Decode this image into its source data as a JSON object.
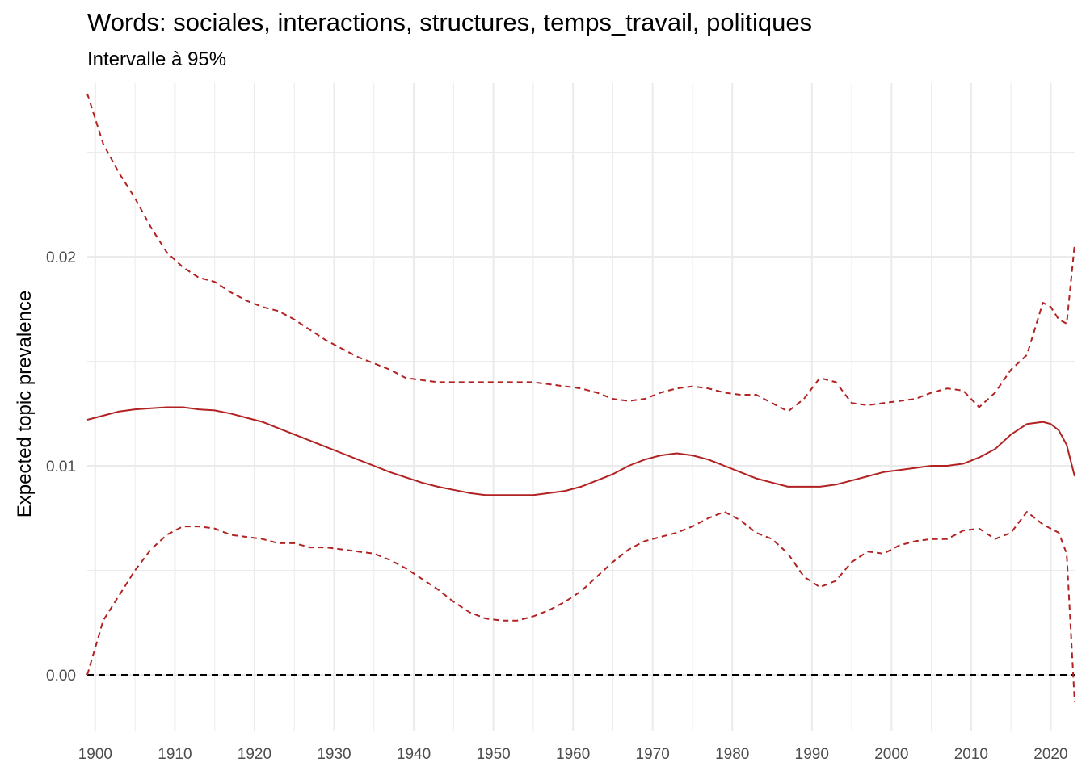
{
  "chart_data": {
    "type": "line",
    "title": "Words: sociales, interactions, structures, temps_travail, politiques",
    "subtitle": "Intervalle à 95%",
    "xlabel": "",
    "ylabel": "Expected topic prevalence",
    "xlim": [
      1899,
      2023
    ],
    "ylim": [
      -0.0027,
      0.0283
    ],
    "x_ticks": [
      1900,
      1910,
      1920,
      1930,
      1940,
      1950,
      1960,
      1970,
      1980,
      1990,
      2000,
      2010,
      2020
    ],
    "x_tick_labels": [
      "1900",
      "1910",
      "1920",
      "1930",
      "1940",
      "1950",
      "1960",
      "1970",
      "1980",
      "1990",
      "2000",
      "2010",
      "2020"
    ],
    "y_ticks": [
      0.0,
      0.01,
      0.02
    ],
    "y_tick_labels": [
      "0.00",
      "0.01",
      "0.02"
    ],
    "y_minor_ticks": [
      0.005,
      0.015,
      0.025
    ],
    "grid": true,
    "reference_line": {
      "y": 0.0,
      "style": "dashed",
      "color": "#000000"
    },
    "colors": {
      "series": "#B22222",
      "grid": "#EBEBEB"
    },
    "x": [
      1899,
      1901,
      1903,
      1905,
      1907,
      1909,
      1911,
      1913,
      1915,
      1917,
      1919,
      1921,
      1923,
      1925,
      1927,
      1929,
      1931,
      1933,
      1935,
      1937,
      1939,
      1941,
      1943,
      1945,
      1947,
      1949,
      1951,
      1953,
      1955,
      1957,
      1959,
      1961,
      1963,
      1965,
      1967,
      1969,
      1971,
      1973,
      1975,
      1977,
      1979,
      1981,
      1983,
      1985,
      1987,
      1989,
      1991,
      1993,
      1995,
      1997,
      1999,
      2001,
      2003,
      2005,
      2007,
      2009,
      2011,
      2013,
      2015,
      2017,
      2019,
      2020,
      2021,
      2022,
      2023
    ],
    "series": [
      {
        "role": "estimate",
        "style": "solid",
        "values": [
          0.0122,
          0.0124,
          0.0126,
          0.0127,
          0.01275,
          0.0128,
          0.0128,
          0.0127,
          0.01265,
          0.0125,
          0.0123,
          0.0121,
          0.0118,
          0.0115,
          0.0112,
          0.0109,
          0.0106,
          0.0103,
          0.01,
          0.0097,
          0.00945,
          0.0092,
          0.009,
          0.00885,
          0.0087,
          0.0086,
          0.0086,
          0.0086,
          0.0086,
          0.0087,
          0.0088,
          0.009,
          0.0093,
          0.0096,
          0.01,
          0.0103,
          0.0105,
          0.0106,
          0.0105,
          0.0103,
          0.01,
          0.0097,
          0.0094,
          0.0092,
          0.009,
          0.009,
          0.009,
          0.0091,
          0.0093,
          0.0095,
          0.0097,
          0.0098,
          0.0099,
          0.01,
          0.01,
          0.0101,
          0.0104,
          0.0108,
          0.0115,
          0.012,
          0.0121,
          0.012,
          0.0117,
          0.011,
          0.0095
        ]
      },
      {
        "role": "upper 95%",
        "style": "dashed",
        "values": [
          0.0278,
          0.0254,
          0.024,
          0.0228,
          0.0214,
          0.0202,
          0.0195,
          0.019,
          0.0188,
          0.0183,
          0.0179,
          0.0176,
          0.0174,
          0.017,
          0.0165,
          0.016,
          0.0156,
          0.0152,
          0.0149,
          0.0146,
          0.0142,
          0.0141,
          0.014,
          0.014,
          0.014,
          0.014,
          0.014,
          0.014,
          0.014,
          0.0139,
          0.0138,
          0.0137,
          0.0135,
          0.0132,
          0.0131,
          0.0132,
          0.0135,
          0.0137,
          0.0138,
          0.0137,
          0.0135,
          0.0134,
          0.0134,
          0.013,
          0.0126,
          0.0132,
          0.0142,
          0.014,
          0.013,
          0.0129,
          0.013,
          0.0131,
          0.0132,
          0.0135,
          0.0137,
          0.0136,
          0.0128,
          0.0135,
          0.0146,
          0.0153,
          0.0178,
          0.0176,
          0.017,
          0.0168,
          0.0206
        ]
      },
      {
        "role": "lower 95%",
        "style": "dashed",
        "values": [
          0.0,
          0.0026,
          0.0038,
          0.005,
          0.006,
          0.0067,
          0.0071,
          0.0071,
          0.007,
          0.0067,
          0.0066,
          0.0065,
          0.0063,
          0.0063,
          0.0061,
          0.0061,
          0.006,
          0.0059,
          0.0058,
          0.0055,
          0.0051,
          0.0046,
          0.0041,
          0.0035,
          0.003,
          0.0027,
          0.0026,
          0.0026,
          0.0028,
          0.0031,
          0.0035,
          0.004,
          0.0047,
          0.0054,
          0.006,
          0.0064,
          0.0066,
          0.0068,
          0.0071,
          0.0075,
          0.0078,
          0.0074,
          0.0068,
          0.0065,
          0.0058,
          0.0047,
          0.0042,
          0.0045,
          0.0054,
          0.0059,
          0.0058,
          0.0062,
          0.0064,
          0.0065,
          0.0065,
          0.0069,
          0.007,
          0.0065,
          0.0068,
          0.0078,
          0.0072,
          0.007,
          0.0068,
          0.0058,
          -0.0013
        ]
      }
    ]
  }
}
